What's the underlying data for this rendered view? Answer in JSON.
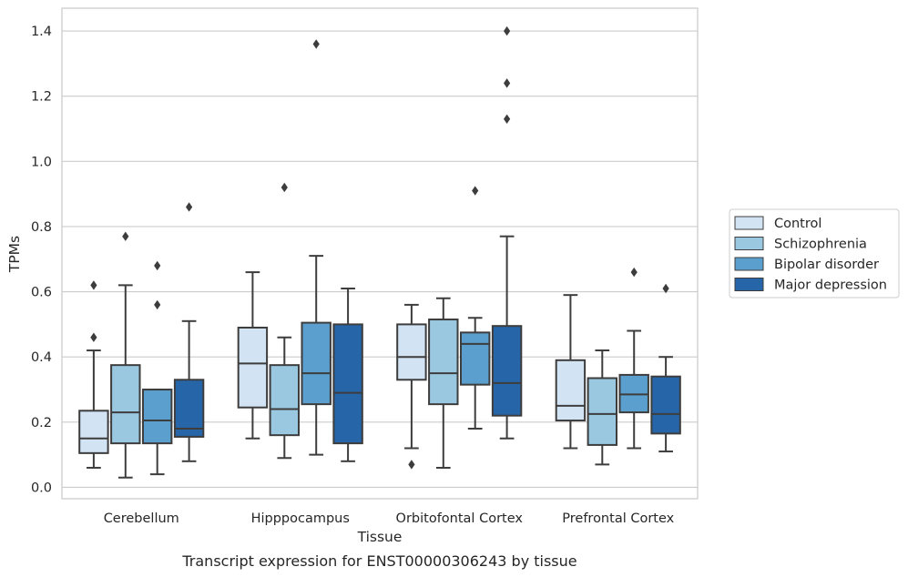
{
  "chart_data": {
    "type": "box",
    "xlabel": "Tissue",
    "ylabel": "TPMs",
    "caption": "Transcript expression for ENST00000306243 by tissue",
    "ylim": [
      -0.035,
      1.47
    ],
    "yticks": [
      "0.0",
      "0.2",
      "0.4",
      "0.6",
      "0.8",
      "1.0",
      "1.2",
      "1.4"
    ],
    "ytick_values": [
      0.0,
      0.2,
      0.4,
      0.6,
      0.8,
      1.0,
      1.2,
      1.4
    ],
    "grid": "horizontal",
    "legend_position": "right",
    "categories": [
      "Cerebellum",
      "Hipppocampus",
      "Orbitofontal Cortex",
      "Prefrontal Cortex"
    ],
    "series": [
      {
        "name": "Control",
        "color": "#d2e3f3",
        "boxes": [
          {
            "whislo": 0.06,
            "q1": 0.105,
            "med": 0.15,
            "q3": 0.235,
            "whishi": 0.42,
            "fliers": [
              0.46,
              0.62
            ]
          },
          {
            "whislo": 0.15,
            "q1": 0.245,
            "med": 0.38,
            "q3": 0.49,
            "whishi": 0.66,
            "fliers": []
          },
          {
            "whislo": 0.12,
            "q1": 0.33,
            "med": 0.4,
            "q3": 0.5,
            "whishi": 0.56,
            "fliers": [
              0.07
            ]
          },
          {
            "whislo": 0.12,
            "q1": 0.205,
            "med": 0.25,
            "q3": 0.39,
            "whishi": 0.59,
            "fliers": []
          }
        ]
      },
      {
        "name": "Schizophrenia",
        "color": "#9ac8e0",
        "boxes": [
          {
            "whislo": 0.03,
            "q1": 0.135,
            "med": 0.23,
            "q3": 0.375,
            "whishi": 0.62,
            "fliers": [
              0.77
            ]
          },
          {
            "whislo": 0.09,
            "q1": 0.16,
            "med": 0.24,
            "q3": 0.375,
            "whishi": 0.46,
            "fliers": [
              0.92
            ]
          },
          {
            "whislo": 0.06,
            "q1": 0.255,
            "med": 0.35,
            "q3": 0.515,
            "whishi": 0.58,
            "fliers": []
          },
          {
            "whislo": 0.07,
            "q1": 0.13,
            "med": 0.225,
            "q3": 0.335,
            "whishi": 0.42,
            "fliers": []
          }
        ]
      },
      {
        "name": "Bipolar disorder",
        "color": "#5a9fcd",
        "boxes": [
          {
            "whislo": 0.04,
            "q1": 0.135,
            "med": 0.205,
            "q3": 0.3,
            "whishi": 0.3,
            "fliers": [
              0.56,
              0.68
            ]
          },
          {
            "whislo": 0.1,
            "q1": 0.255,
            "med": 0.35,
            "q3": 0.505,
            "whishi": 0.71,
            "fliers": [
              1.36
            ]
          },
          {
            "whislo": 0.18,
            "q1": 0.315,
            "med": 0.44,
            "q3": 0.475,
            "whishi": 0.52,
            "fliers": [
              0.91
            ]
          },
          {
            "whislo": 0.12,
            "q1": 0.23,
            "med": 0.285,
            "q3": 0.345,
            "whishi": 0.48,
            "fliers": [
              0.66
            ]
          }
        ]
      },
      {
        "name": "Major depression",
        "color": "#2565a8",
        "boxes": [
          {
            "whislo": 0.08,
            "q1": 0.155,
            "med": 0.18,
            "q3": 0.33,
            "whishi": 0.51,
            "fliers": [
              0.86
            ]
          },
          {
            "whislo": 0.08,
            "q1": 0.135,
            "med": 0.29,
            "q3": 0.5,
            "whishi": 0.61,
            "fliers": []
          },
          {
            "whislo": 0.15,
            "q1": 0.22,
            "med": 0.32,
            "q3": 0.495,
            "whishi": 0.77,
            "fliers": [
              1.13,
              1.24,
              1.4
            ]
          },
          {
            "whislo": 0.11,
            "q1": 0.165,
            "med": 0.225,
            "q3": 0.34,
            "whishi": 0.4,
            "fliers": [
              0.61
            ]
          }
        ]
      }
    ]
  }
}
